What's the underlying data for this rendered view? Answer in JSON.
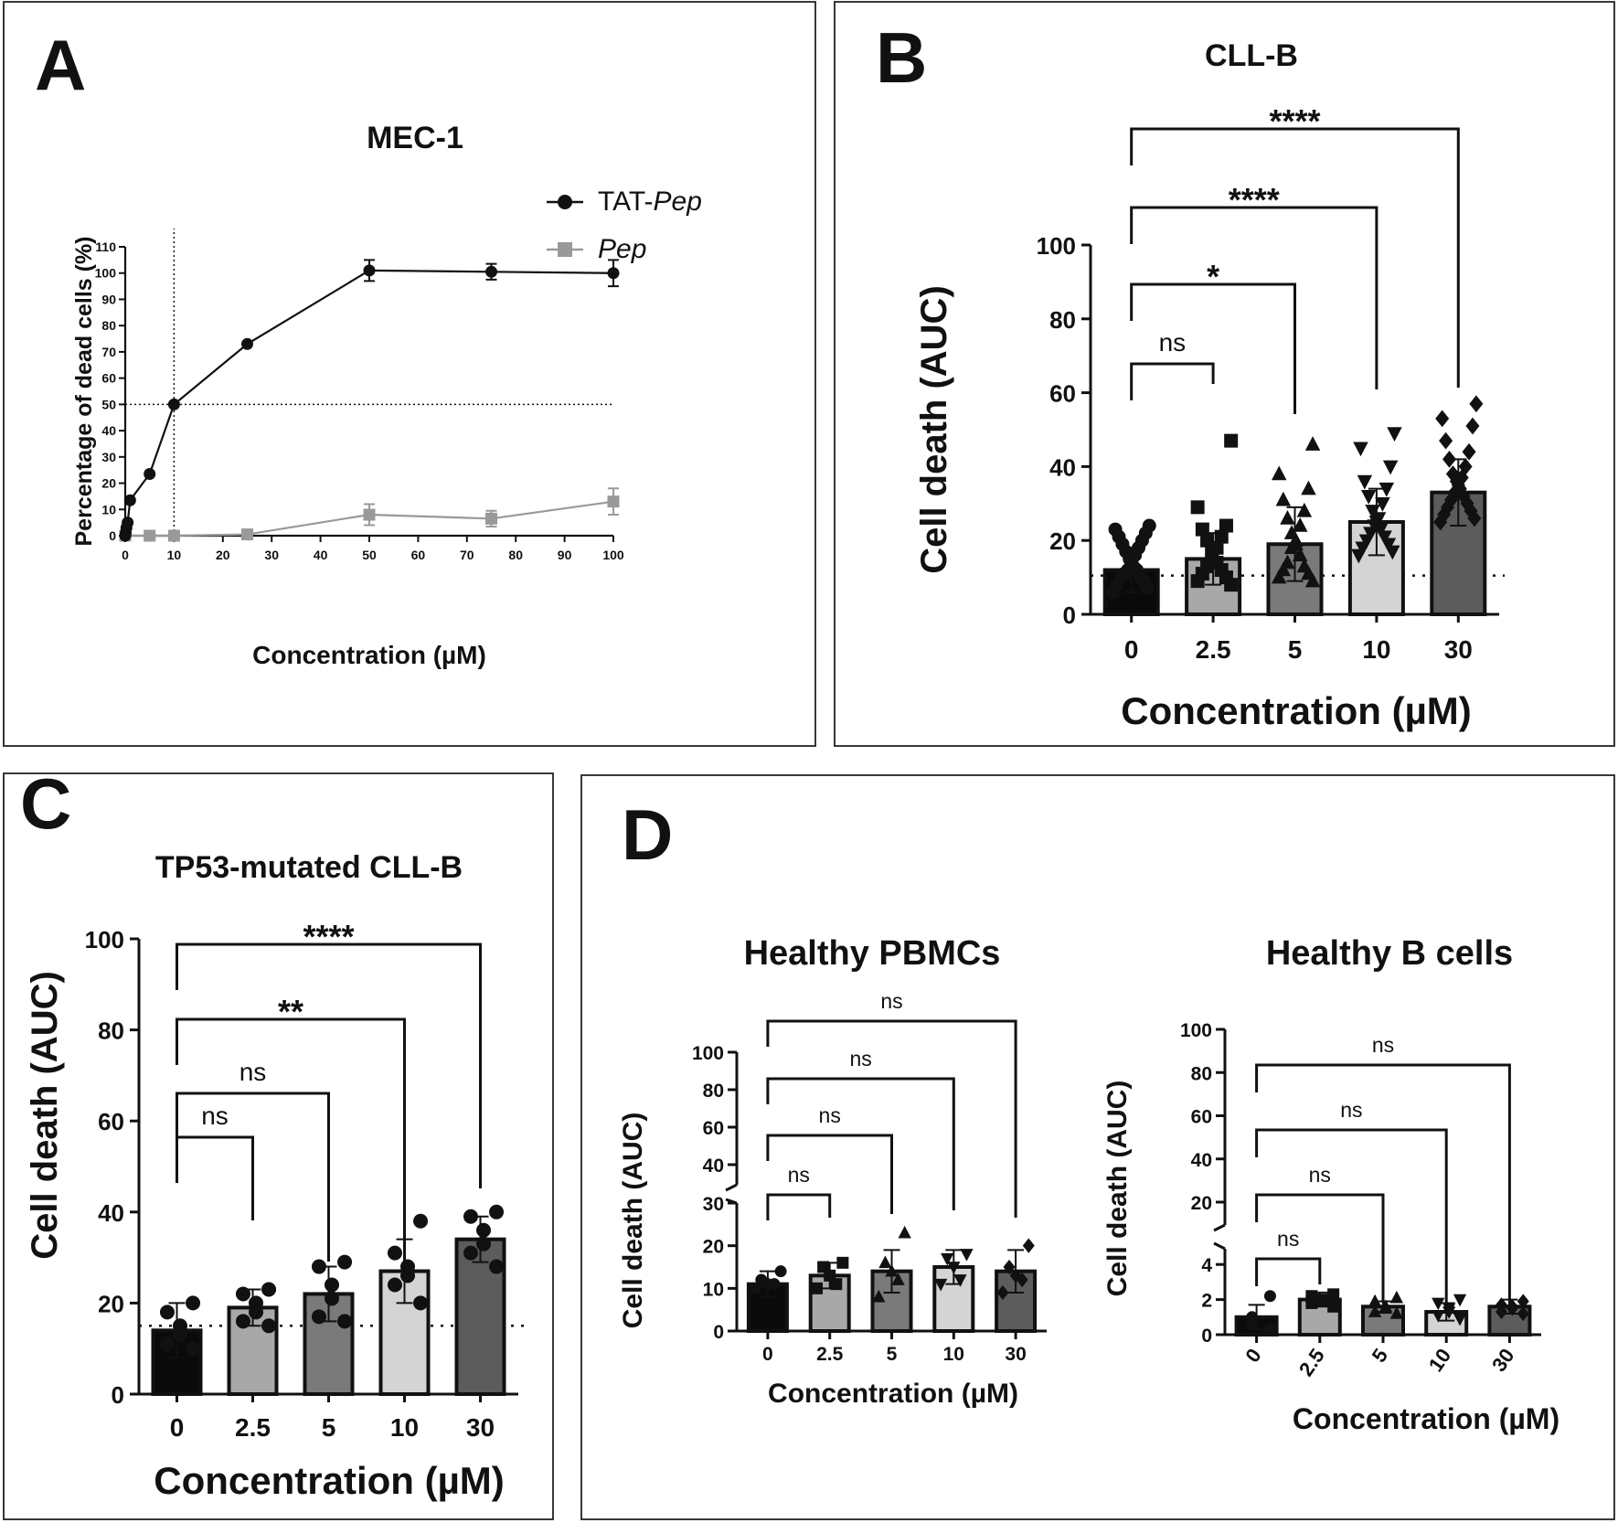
{
  "panels": {
    "A": {
      "letter": "A",
      "title": "MEC-1"
    },
    "B": {
      "letter": "B",
      "title": "CLL-B"
    },
    "C": {
      "letter": "C",
      "title": "TP53-mutated CLL-B"
    },
    "D": {
      "letter": "D"
    },
    "D1": {
      "title": "Healthy PBMCs"
    },
    "D2": {
      "title": "Healthy B cells"
    }
  },
  "chart_data": [
    {
      "id": "A",
      "type": "line",
      "title": "MEC-1",
      "xlabel": "Concentration (µM)",
      "ylabel": "Percentage of dead cells (%)",
      "xlim": [
        0,
        100
      ],
      "ylim": [
        0,
        110
      ],
      "xticks": [
        "0",
        "10",
        "20",
        "30",
        "40",
        "50",
        "60",
        "70",
        "80",
        "90",
        "100"
      ],
      "yticks": [
        "0",
        "10",
        "20",
        "30",
        "40",
        "50",
        "60",
        "70",
        "80",
        "90",
        "100",
        "110"
      ],
      "reference_lines": {
        "x": 10,
        "y": 50
      },
      "legend": {
        "position": "top-right"
      },
      "series": [
        {
          "name": "TAT-",
          "name_italic": "Pep",
          "color": "#111111",
          "marker": "circle",
          "x": [
            0,
            0.1,
            0.25,
            0.5,
            1,
            5,
            10,
            25,
            50,
            75,
            100
          ],
          "y": [
            0,
            1,
            3,
            5,
            13.5,
            23.5,
            50,
            73,
            101,
            100.5,
            100
          ],
          "err": [
            0,
            0,
            0,
            0,
            0,
            0,
            0,
            0,
            4,
            3,
            5
          ]
        },
        {
          "name": "",
          "name_italic": "Pep",
          "color": "#999999",
          "marker": "square",
          "x": [
            0,
            5,
            10,
            25,
            50,
            75,
            100
          ],
          "y": [
            0,
            0,
            0,
            0.5,
            8,
            6.5,
            13
          ],
          "err": [
            0,
            0,
            0,
            0,
            4,
            3,
            5
          ]
        }
      ]
    },
    {
      "id": "B",
      "type": "bar",
      "title": "CLL-B",
      "xlabel": "Concentration (µM)",
      "ylabel": "Cell death (AUC)",
      "categories": [
        "0",
        "2.5",
        "5",
        "10",
        "30"
      ],
      "values": [
        12,
        15,
        19,
        25,
        33
      ],
      "err": [
        6,
        7,
        10,
        9,
        9
      ],
      "colors": [
        "#0a0a0a",
        "#a8a8a8",
        "#7a7a7a",
        "#d4d4d4",
        "#5c5c5c"
      ],
      "markers": [
        "circle",
        "square",
        "triangle",
        "triangle-down",
        "diamond"
      ],
      "points": [
        [
          24,
          23,
          22,
          21,
          20,
          19,
          18,
          17,
          16,
          15,
          14,
          13,
          12,
          12,
          11,
          10,
          10,
          9,
          8,
          7,
          6
        ],
        [
          47,
          29,
          24,
          23,
          21,
          20,
          18,
          17,
          16,
          14,
          13,
          12,
          11,
          10,
          9,
          8
        ],
        [
          46,
          38,
          34,
          31,
          28,
          26,
          24,
          22,
          20,
          19,
          18,
          16,
          14,
          13,
          12,
          11,
          10,
          9
        ],
        [
          49,
          45,
          40,
          36,
          34,
          32,
          30,
          28,
          26,
          25,
          24,
          23,
          22,
          21,
          20,
          19,
          18,
          17,
          16
        ],
        [
          57,
          53,
          51,
          47,
          44,
          42,
          40,
          38,
          37,
          36,
          35,
          34,
          33,
          32,
          31,
          30,
          29,
          28,
          27,
          26,
          25
        ]
      ],
      "ylim": [
        0,
        100
      ],
      "yticks": [
        "0",
        "20",
        "40",
        "60",
        "80",
        "100"
      ],
      "reference_y": 10.5,
      "comparisons": [
        {
          "vs": "2.5",
          "label": "ns"
        },
        {
          "vs": "5",
          "label": "*"
        },
        {
          "vs": "10",
          "label": "****"
        },
        {
          "vs": "30",
          "label": "****"
        }
      ]
    },
    {
      "id": "C",
      "type": "bar",
      "title": "TP53-mutated CLL-B",
      "xlabel": "Concentration (µM)",
      "ylabel": "Cell death (AUC)",
      "categories": [
        "0",
        "2.5",
        "5",
        "10",
        "30"
      ],
      "values": [
        14,
        19,
        22,
        27,
        34
      ],
      "err": [
        6,
        4,
        6,
        7,
        5
      ],
      "colors": [
        "#0a0a0a",
        "#a8a8a8",
        "#7a7a7a",
        "#d4d4d4",
        "#5c5c5c"
      ],
      "markers": [
        "circle",
        "circle",
        "circle",
        "circle",
        "circle"
      ],
      "points": [
        [
          20,
          18,
          15,
          13,
          11,
          10
        ],
        [
          23,
          22,
          20,
          18,
          16,
          15
        ],
        [
          29,
          28,
          24,
          21,
          17,
          16
        ],
        [
          38,
          31,
          28,
          26,
          24,
          20
        ],
        [
          40,
          39,
          36,
          33,
          31,
          28
        ]
      ],
      "ylim": [
        0,
        100
      ],
      "yticks": [
        "0",
        "20",
        "40",
        "60",
        "80",
        "100"
      ],
      "reference_y": 15,
      "comparisons": [
        {
          "vs": "2.5",
          "label": "ns"
        },
        {
          "vs": "5",
          "label": "ns"
        },
        {
          "vs": "10",
          "label": "**"
        },
        {
          "vs": "30",
          "label": "****"
        }
      ]
    },
    {
      "id": "D1",
      "type": "bar",
      "title": "Healthy PBMCs",
      "xlabel": "Concentration (µM)",
      "ylabel": "Cell death (AUC)",
      "categories": [
        "0",
        "2.5",
        "5",
        "10",
        "30"
      ],
      "values": [
        11,
        13,
        14,
        15,
        14
      ],
      "err": [
        3,
        3,
        5,
        4,
        5
      ],
      "colors": [
        "#0a0a0a",
        "#a8a8a8",
        "#7a7a7a",
        "#d4d4d4",
        "#5c5c5c"
      ],
      "markers": [
        "circle",
        "square",
        "triangle",
        "triangle-down",
        "diamond"
      ],
      "points": [
        [
          14,
          12,
          11,
          11,
          10
        ],
        [
          16,
          15,
          13,
          11,
          10
        ],
        [
          23,
          16,
          14,
          12,
          8
        ],
        [
          18,
          17,
          15,
          12,
          11
        ],
        [
          20,
          15,
          13,
          12,
          9
        ]
      ],
      "axis_break": {
        "lower": [
          0,
          30
        ],
        "upper": [
          40,
          100
        ]
      },
      "yticks_lower": [
        "0",
        "10",
        "20",
        "30"
      ],
      "yticks_upper": [
        "40",
        "60",
        "80",
        "100"
      ],
      "comparisons": [
        {
          "vs": "2.5",
          "label": "ns"
        },
        {
          "vs": "5",
          "label": "ns"
        },
        {
          "vs": "10",
          "label": "ns"
        },
        {
          "vs": "30",
          "label": "ns"
        }
      ]
    },
    {
      "id": "D2",
      "type": "bar",
      "title": "Healthy B cells",
      "xlabel": "Concentration (µM)",
      "ylabel": "Cell death (AUC)",
      "categories": [
        "0",
        "2.5",
        "5",
        "10",
        "30"
      ],
      "values": [
        1.0,
        2.0,
        1.6,
        1.3,
        1.6
      ],
      "err": [
        0.7,
        0.4,
        0.3,
        0.5,
        0.4
      ],
      "colors": [
        "#0a0a0a",
        "#a8a8a8",
        "#7a7a7a",
        "#d4d4d4",
        "#5c5c5c"
      ],
      "markers": [
        "circle",
        "square",
        "triangle",
        "triangle-down",
        "diamond"
      ],
      "points": [
        [
          2.2,
          1.0,
          0.6,
          0.3
        ],
        [
          2.3,
          2.2,
          2.0,
          1.9,
          1.8,
          1.6
        ],
        [
          2.1,
          1.9,
          1.6,
          1.5,
          1.3,
          1.2
        ],
        [
          2.0,
          1.8,
          1.5,
          1.3,
          1.1,
          0.9
        ],
        [
          1.9,
          1.7,
          1.6,
          1.5,
          1.3,
          1.2
        ]
      ],
      "axis_break": {
        "lower": [
          0,
          5
        ],
        "upper": [
          10,
          100
        ]
      },
      "yticks_lower": [
        "0",
        "2",
        "4"
      ],
      "yticks_upper": [
        "20",
        "40",
        "60",
        "80",
        "100"
      ],
      "comparisons": [
        {
          "vs": "2.5",
          "label": "ns"
        },
        {
          "vs": "5",
          "label": "ns"
        },
        {
          "vs": "10",
          "label": "ns"
        },
        {
          "vs": "30",
          "label": "ns"
        }
      ]
    }
  ]
}
